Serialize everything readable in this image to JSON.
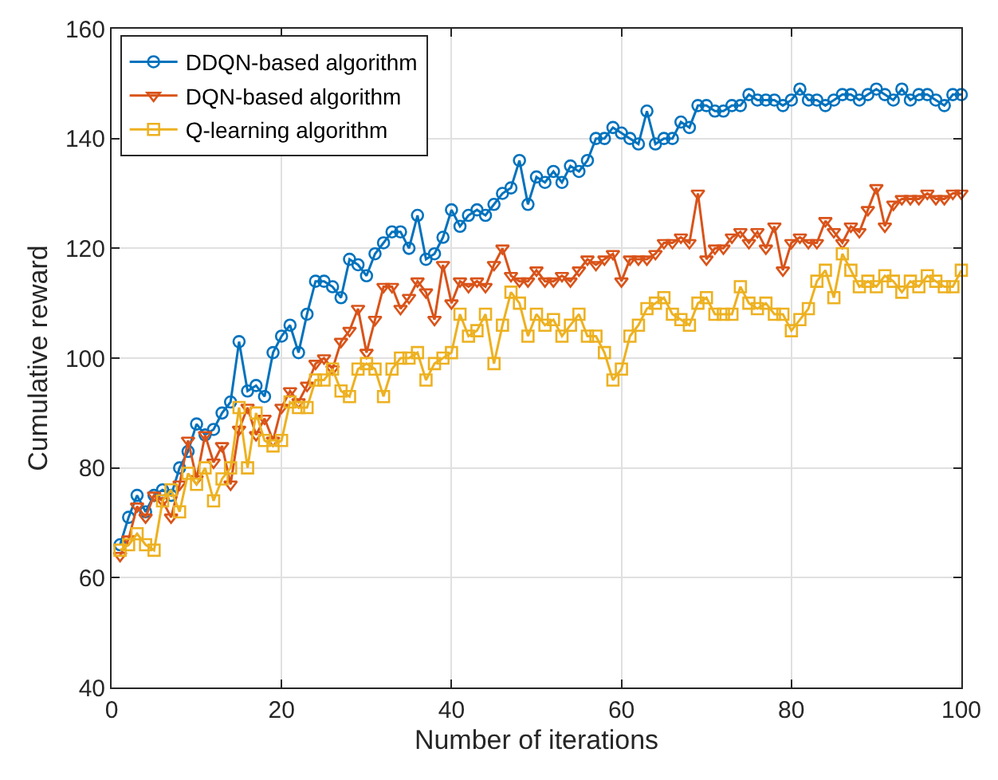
{
  "chart_data": {
    "type": "line",
    "xlabel": "Number of iterations",
    "ylabel": "Cumulative reward",
    "x": [
      1,
      2,
      3,
      4,
      5,
      6,
      7,
      8,
      9,
      10,
      11,
      12,
      13,
      14,
      15,
      16,
      17,
      18,
      19,
      20,
      21,
      22,
      23,
      24,
      25,
      26,
      27,
      28,
      29,
      30,
      31,
      32,
      33,
      34,
      35,
      36,
      37,
      38,
      39,
      40,
      41,
      42,
      43,
      44,
      45,
      46,
      47,
      48,
      49,
      50,
      51,
      52,
      53,
      54,
      55,
      56,
      57,
      58,
      59,
      60,
      61,
      62,
      63,
      64,
      65,
      66,
      67,
      68,
      69,
      70,
      71,
      72,
      73,
      74,
      75,
      76,
      77,
      78,
      79,
      80,
      81,
      82,
      83,
      84,
      85,
      86,
      87,
      88,
      89,
      90,
      91,
      92,
      93,
      94,
      95,
      96,
      97,
      98,
      99,
      100
    ],
    "series": [
      {
        "name": "DDQN-based algorithm",
        "color": "#0072bd",
        "marker": "circle",
        "values": [
          66,
          71,
          75,
          72,
          75,
          76,
          75,
          80,
          83,
          88,
          86,
          87,
          90,
          92,
          103,
          94,
          95,
          93,
          101,
          104,
          106,
          101,
          108,
          114,
          114,
          113,
          111,
          118,
          117,
          115,
          119,
          121,
          123,
          123,
          120,
          126,
          118,
          119,
          122,
          127,
          124,
          126,
          127,
          126,
          128,
          130,
          131,
          136,
          128,
          133,
          132,
          134,
          132,
          135,
          134,
          136,
          140,
          140,
          142,
          141,
          140,
          139,
          145,
          139,
          140,
          140,
          143,
          142,
          146,
          146,
          145,
          145,
          146,
          146,
          148,
          147,
          147,
          147,
          146,
          147,
          149,
          147,
          147,
          146,
          147,
          148,
          148,
          147,
          148,
          149,
          148,
          147,
          149,
          147,
          148,
          148,
          147,
          146,
          148,
          148
        ]
      },
      {
        "name": "DQN-based algorithm",
        "color": "#d95319",
        "marker": "triangle",
        "values": [
          64,
          67,
          73,
          71,
          75,
          74,
          71,
          77,
          85,
          78,
          86,
          81,
          84,
          77,
          87,
          91,
          86,
          89,
          85,
          91,
          94,
          92,
          95,
          99,
          100,
          98,
          103,
          105,
          109,
          101,
          107,
          113,
          113,
          109,
          111,
          114,
          112,
          107,
          117,
          110,
          114,
          113,
          114,
          113,
          117,
          120,
          115,
          114,
          114,
          116,
          114,
          114,
          115,
          114,
          116,
          118,
          117,
          118,
          119,
          114,
          118,
          118,
          118,
          119,
          121,
          121,
          122,
          121,
          130,
          118,
          120,
          120,
          122,
          123,
          121,
          123,
          120,
          124,
          116,
          121,
          122,
          121,
          121,
          125,
          123,
          121,
          124,
          123,
          127,
          131,
          124,
          128,
          129,
          129,
          129,
          130,
          129,
          129,
          130,
          130
        ]
      },
      {
        "name": "Q-learning algorithm",
        "color": "#edb120",
        "marker": "square",
        "values": [
          65,
          66,
          68,
          66,
          65,
          74,
          76,
          72,
          79,
          77,
          80,
          74,
          78,
          80,
          91,
          80,
          90,
          85,
          84,
          85,
          92,
          91,
          91,
          96,
          96,
          98,
          94,
          93,
          98,
          99,
          98,
          93,
          98,
          100,
          100,
          101,
          96,
          99,
          100,
          101,
          108,
          104,
          105,
          108,
          99,
          106,
          112,
          110,
          104,
          108,
          106,
          107,
          104,
          106,
          108,
          104,
          104,
          101,
          96,
          98,
          104,
          106,
          109,
          110,
          111,
          108,
          107,
          106,
          110,
          111,
          108,
          108,
          108,
          113,
          110,
          109,
          110,
          108,
          108,
          105,
          107,
          109,
          114,
          116,
          111,
          119,
          116,
          113,
          114,
          113,
          115,
          114,
          112,
          114,
          113,
          115,
          114,
          113,
          113,
          116
        ]
      }
    ],
    "xlim": [
      0,
      100
    ],
    "xticks": [
      0,
      20,
      40,
      60,
      80,
      100
    ],
    "ylim": [
      40,
      160
    ],
    "yticks": [
      40,
      60,
      80,
      100,
      120,
      140,
      160
    ],
    "grid": true,
    "legend": "top left",
    "line_style": "solid"
  }
}
